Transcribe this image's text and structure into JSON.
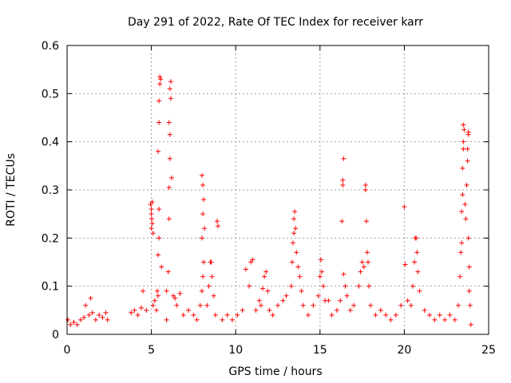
{
  "chart_data": {
    "type": "scatter",
    "title": "Day 291 of 2022, Rate Of TEC Index for receiver karr",
    "xlabel": "GPS time / hours",
    "ylabel": "ROTI / TECUs",
    "xlim": [
      0,
      25
    ],
    "ylim": [
      0,
      0.6
    ],
    "xticks": [
      "0",
      "5",
      "10",
      "15",
      "20",
      "25"
    ],
    "yticks": [
      "0",
      "0.1",
      "0.2",
      "0.3",
      "0.4",
      "0.5",
      "0.6"
    ],
    "grid": true,
    "legend": "none",
    "marker": "plus",
    "color": "#ff0000",
    "points": [
      [
        0.05,
        0.03
      ],
      [
        0.2,
        0.02
      ],
      [
        0.4,
        0.025
      ],
      [
        0.6,
        0.02
      ],
      [
        0.8,
        0.03
      ],
      [
        1.0,
        0.035
      ],
      [
        1.1,
        0.06
      ],
      [
        1.3,
        0.04
      ],
      [
        1.4,
        0.075
      ],
      [
        1.5,
        0.045
      ],
      [
        1.7,
        0.03
      ],
      [
        1.9,
        0.04
      ],
      [
        2.1,
        0.035
      ],
      [
        2.3,
        0.045
      ],
      [
        2.4,
        0.03
      ],
      [
        3.8,
        0.045
      ],
      [
        4.0,
        0.05
      ],
      [
        4.2,
        0.04
      ],
      [
        4.4,
        0.055
      ],
      [
        4.5,
        0.09
      ],
      [
        4.7,
        0.05
      ],
      [
        4.95,
        0.27
      ],
      [
        5.0,
        0.26
      ],
      [
        5.0,
        0.25
      ],
      [
        5.02,
        0.24
      ],
      [
        5.05,
        0.23
      ],
      [
        5.0,
        0.22
      ],
      [
        5.05,
        0.275
      ],
      [
        5.1,
        0.21
      ],
      [
        5.1,
        0.06
      ],
      [
        5.2,
        0.07
      ],
      [
        5.3,
        0.05
      ],
      [
        5.35,
        0.09
      ],
      [
        5.4,
        0.08
      ],
      [
        5.4,
        0.165
      ],
      [
        5.45,
        0.2
      ],
      [
        5.45,
        0.26
      ],
      [
        5.4,
        0.38
      ],
      [
        5.45,
        0.44
      ],
      [
        5.45,
        0.485
      ],
      [
        5.5,
        0.535
      ],
      [
        5.55,
        0.53
      ],
      [
        5.5,
        0.52
      ],
      [
        5.6,
        0.14
      ],
      [
        5.9,
        0.03
      ],
      [
        5.9,
        0.09
      ],
      [
        6.0,
        0.13
      ],
      [
        6.05,
        0.24
      ],
      [
        6.05,
        0.305
      ],
      [
        6.1,
        0.365
      ],
      [
        6.1,
        0.415
      ],
      [
        6.05,
        0.44
      ],
      [
        6.15,
        0.49
      ],
      [
        6.1,
        0.51
      ],
      [
        6.15,
        0.525
      ],
      [
        6.2,
        0.325
      ],
      [
        6.3,
        0.08
      ],
      [
        6.4,
        0.075
      ],
      [
        6.5,
        0.06
      ],
      [
        6.7,
        0.085
      ],
      [
        6.9,
        0.04
      ],
      [
        7.2,
        0.05
      ],
      [
        7.5,
        0.04
      ],
      [
        7.7,
        0.03
      ],
      [
        7.9,
        0.06
      ],
      [
        8.0,
        0.09
      ],
      [
        8.05,
        0.12
      ],
      [
        8.1,
        0.15
      ],
      [
        8.0,
        0.2
      ],
      [
        8.05,
        0.25
      ],
      [
        8.1,
        0.28
      ],
      [
        8.05,
        0.31
      ],
      [
        8.0,
        0.33
      ],
      [
        8.15,
        0.22
      ],
      [
        8.3,
        0.06
      ],
      [
        8.4,
        0.1
      ],
      [
        8.5,
        0.15
      ],
      [
        8.55,
        0.15
      ],
      [
        8.6,
        0.12
      ],
      [
        8.7,
        0.08
      ],
      [
        8.8,
        0.04
      ],
      [
        8.9,
        0.235
      ],
      [
        8.95,
        0.225
      ],
      [
        9.2,
        0.03
      ],
      [
        9.5,
        0.04
      ],
      [
        9.8,
        0.03
      ],
      [
        10.1,
        0.04
      ],
      [
        10.4,
        0.05
      ],
      [
        10.6,
        0.135
      ],
      [
        10.8,
        0.1
      ],
      [
        10.9,
        0.15
      ],
      [
        11.0,
        0.155
      ],
      [
        11.2,
        0.05
      ],
      [
        11.4,
        0.07
      ],
      [
        11.5,
        0.06
      ],
      [
        11.6,
        0.095
      ],
      [
        11.7,
        0.12
      ],
      [
        11.8,
        0.13
      ],
      [
        11.9,
        0.09
      ],
      [
        12.0,
        0.05
      ],
      [
        12.2,
        0.04
      ],
      [
        12.5,
        0.06
      ],
      [
        12.8,
        0.07
      ],
      [
        13.0,
        0.08
      ],
      [
        13.3,
        0.1
      ],
      [
        13.35,
        0.15
      ],
      [
        13.4,
        0.19
      ],
      [
        13.45,
        0.21
      ],
      [
        13.45,
        0.24
      ],
      [
        13.5,
        0.255
      ],
      [
        13.55,
        0.22
      ],
      [
        13.6,
        0.17
      ],
      [
        13.7,
        0.14
      ],
      [
        13.8,
        0.12
      ],
      [
        13.9,
        0.09
      ],
      [
        14.0,
        0.06
      ],
      [
        14.3,
        0.04
      ],
      [
        14.6,
        0.06
      ],
      [
        14.9,
        0.08
      ],
      [
        15.0,
        0.12
      ],
      [
        15.05,
        0.155
      ],
      [
        15.1,
        0.13
      ],
      [
        15.2,
        0.1
      ],
      [
        15.3,
        0.07
      ],
      [
        15.5,
        0.07
      ],
      [
        15.7,
        0.04
      ],
      [
        16.0,
        0.05
      ],
      [
        16.2,
        0.07
      ],
      [
        16.3,
        0.235
      ],
      [
        16.35,
        0.31
      ],
      [
        16.35,
        0.32
      ],
      [
        16.4,
        0.365
      ],
      [
        16.4,
        0.125
      ],
      [
        16.5,
        0.1
      ],
      [
        16.6,
        0.08
      ],
      [
        16.8,
        0.05
      ],
      [
        17.0,
        0.06
      ],
      [
        17.3,
        0.1
      ],
      [
        17.4,
        0.13
      ],
      [
        17.5,
        0.15
      ],
      [
        17.6,
        0.14
      ],
      [
        17.7,
        0.31
      ],
      [
        17.7,
        0.3
      ],
      [
        17.75,
        0.235
      ],
      [
        17.8,
        0.17
      ],
      [
        17.85,
        0.15
      ],
      [
        17.9,
        0.1
      ],
      [
        18.0,
        0.06
      ],
      [
        18.3,
        0.04
      ],
      [
        18.6,
        0.05
      ],
      [
        18.9,
        0.04
      ],
      [
        19.2,
        0.03
      ],
      [
        19.5,
        0.04
      ],
      [
        19.8,
        0.06
      ],
      [
        20.0,
        0.265
      ],
      [
        20.05,
        0.145
      ],
      [
        20.2,
        0.07
      ],
      [
        20.4,
        0.06
      ],
      [
        20.5,
        0.1
      ],
      [
        20.6,
        0.15
      ],
      [
        20.65,
        0.2
      ],
      [
        20.7,
        0.2
      ],
      [
        20.75,
        0.17
      ],
      [
        20.8,
        0.13
      ],
      [
        20.9,
        0.09
      ],
      [
        21.2,
        0.05
      ],
      [
        21.5,
        0.04
      ],
      [
        21.8,
        0.03
      ],
      [
        22.1,
        0.04
      ],
      [
        22.4,
        0.03
      ],
      [
        22.7,
        0.04
      ],
      [
        23.0,
        0.03
      ],
      [
        23.2,
        0.06
      ],
      [
        23.3,
        0.12
      ],
      [
        23.35,
        0.17
      ],
      [
        23.4,
        0.19
      ],
      [
        23.4,
        0.255
      ],
      [
        23.45,
        0.29
      ],
      [
        23.45,
        0.345
      ],
      [
        23.5,
        0.385
      ],
      [
        23.5,
        0.4
      ],
      [
        23.55,
        0.425
      ],
      [
        23.5,
        0.435
      ],
      [
        23.6,
        0.27
      ],
      [
        23.65,
        0.24
      ],
      [
        23.7,
        0.31
      ],
      [
        23.75,
        0.36
      ],
      [
        23.75,
        0.385
      ],
      [
        23.8,
        0.415
      ],
      [
        23.8,
        0.42
      ],
      [
        23.8,
        0.2
      ],
      [
        23.85,
        0.14
      ],
      [
        23.85,
        0.09
      ],
      [
        23.9,
        0.06
      ],
      [
        23.95,
        0.02
      ]
    ]
  }
}
